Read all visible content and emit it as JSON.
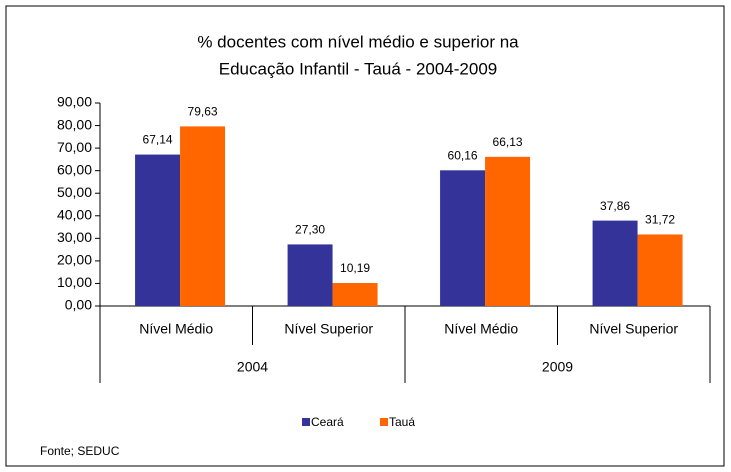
{
  "chart_data": {
    "type": "bar",
    "title": [
      "% docentes com nível médio e superior na",
      "Educação Infantil - Tauá - 2004-2009"
    ],
    "categories": [
      "Nível Médio",
      "Nível Superior",
      "Nível Médio",
      "Nível Superior"
    ],
    "groups": [
      "2004",
      "2009"
    ],
    "series": [
      {
        "name": "Ceará",
        "color": "#333399",
        "values": [
          67.14,
          27.3,
          60.16,
          37.86
        ],
        "value_labels": [
          "67,14",
          "27,30",
          "60,16",
          "37,86"
        ]
      },
      {
        "name": "Tauá",
        "color": "#ff6600",
        "values": [
          79.63,
          10.19,
          66.13,
          31.72
        ],
        "value_labels": [
          "79,63",
          "10,19",
          "66,13",
          "31,72"
        ]
      }
    ],
    "ylim": [
      0,
      90
    ],
    "yticks": [
      {
        "value": 0,
        "label": "0,00"
      },
      {
        "value": 10,
        "label": "10,00"
      },
      {
        "value": 20,
        "label": "20,00"
      },
      {
        "value": 30,
        "label": "30,00"
      },
      {
        "value": 40,
        "label": "40,00"
      },
      {
        "value": 50,
        "label": "50,00"
      },
      {
        "value": 60,
        "label": "60,00"
      },
      {
        "value": 70,
        "label": "70,00"
      },
      {
        "value": 80,
        "label": "80,00"
      },
      {
        "value": 90,
        "label": "90,00"
      }
    ],
    "grid": false,
    "legend": "bottom",
    "source": "Fonte; SEDUC"
  }
}
